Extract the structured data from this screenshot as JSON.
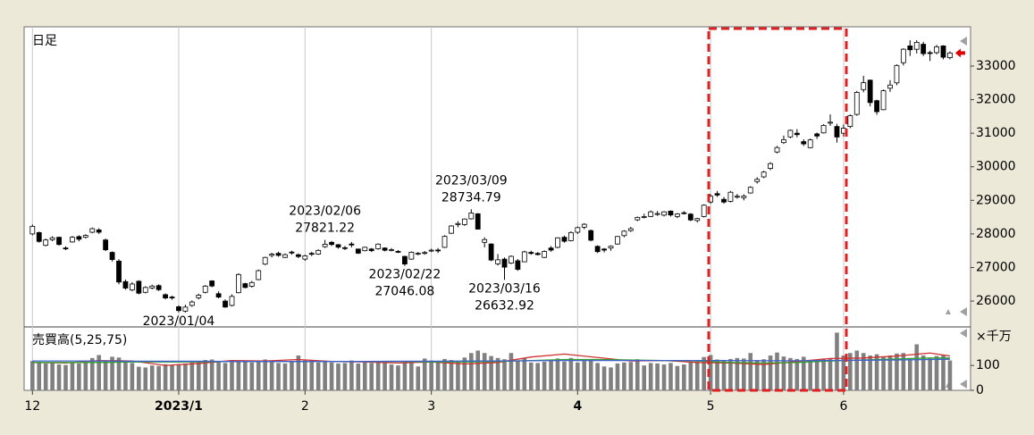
{
  "chart_data": [
    {
      "type": "candlestick",
      "title": "日足",
      "xlim": [
        -1.25,
        141.1
      ],
      "ylim": [
        25230,
        34170
      ],
      "yticks": [
        26000,
        27000,
        28000,
        29000,
        30000,
        31000,
        32000,
        33000
      ],
      "open": [
        28000,
        28040,
        27660,
        27830,
        27900,
        27580,
        27760,
        27920,
        27900,
        28050,
        28120,
        27820,
        27450,
        27190,
        26580,
        26330,
        26590,
        26260,
        26390,
        26460,
        26190,
        26120,
        25830,
        25700,
        25870,
        26100,
        26260,
        26600,
        26220,
        26000,
        25870,
        26250,
        26520,
        26440,
        26640,
        27100,
        27360,
        27420,
        27300,
        27460,
        27380,
        27250,
        27420,
        27400,
        27620,
        27750,
        27680,
        27590,
        27700,
        27550,
        27500,
        27550,
        27560,
        27580,
        27530,
        27480,
        27330,
        27250,
        27400,
        27420,
        27500,
        27520,
        27600,
        28020,
        28280,
        28280,
        28450,
        28600,
        27750,
        27700,
        27110,
        27250,
        27130,
        27200,
        27170,
        27450,
        27420,
        27300,
        27580,
        27600,
        27900,
        27800,
        28050,
        28200,
        28100,
        27630,
        27550,
        27580,
        27700,
        27950,
        28100,
        28420,
        28500,
        28520,
        28600,
        28560,
        28680,
        28520,
        28630,
        28590,
        28400,
        28520,
        28950,
        29200,
        29030,
        28970,
        29100,
        29080,
        29220,
        29560,
        29700,
        29950,
        30440,
        30720,
        30890,
        31000,
        30750,
        30570,
        30980,
        31010,
        31300,
        31200,
        31000,
        31200,
        31560,
        32300,
        32580,
        31970,
        31700,
        32340,
        32500,
        33100,
        33600,
        33500,
        33650,
        33400,
        33400,
        33600,
        33250
      ],
      "high": [
        28280,
        28070,
        27860,
        27930,
        27920,
        27630,
        27940,
        27960,
        27990,
        28190,
        28170,
        27860,
        27480,
        27250,
        26640,
        26560,
        26620,
        26440,
        26490,
        26500,
        26230,
        26160,
        25870,
        25890,
        26020,
        26220,
        26480,
        26620,
        26290,
        26050,
        26200,
        26830,
        26540,
        26600,
        26940,
        27320,
        27440,
        27470,
        27420,
        27500,
        27420,
        27380,
        27470,
        27540,
        27821.22,
        27790,
        27700,
        27640,
        27760,
        27560,
        27620,
        27580,
        27720,
        27600,
        27580,
        27520,
        27350,
        27480,
        27460,
        27490,
        27560,
        27580,
        27960,
        28260,
        28380,
        28460,
        28734.79,
        28620,
        27900,
        27720,
        27400,
        27300,
        27360,
        27250,
        27500,
        27500,
        27460,
        27510,
        27640,
        27900,
        27950,
        28080,
        28220,
        28320,
        28130,
        27660,
        27580,
        27660,
        27940,
        28110,
        28210,
        28520,
        28600,
        28700,
        28680,
        28680,
        28700,
        28620,
        28680,
        28620,
        28480,
        28880,
        29180,
        29280,
        29100,
        29280,
        29190,
        29180,
        29420,
        29690,
        29880,
        30140,
        30620,
        30930,
        31110,
        31120,
        30820,
        30840,
        31020,
        31270,
        31560,
        31280,
        31260,
        31560,
        32260,
        32710,
        32600,
        32000,
        32300,
        32580,
        33050,
        33530,
        33770,
        33770,
        33720,
        33460,
        33630,
        33620,
        33440
      ],
      "low": [
        27960,
        27740,
        27630,
        27780,
        27650,
        27520,
        27740,
        27780,
        27860,
        28020,
        28000,
        27490,
        27180,
        26500,
        26340,
        26290,
        26200,
        26230,
        26350,
        26300,
        26050,
        26040,
        25661.89,
        25660,
        25830,
        26050,
        26230,
        26410,
        26080,
        25800,
        25840,
        26230,
        26380,
        26400,
        26620,
        27070,
        27300,
        27320,
        27280,
        27380,
        27280,
        27200,
        27340,
        27380,
        27580,
        27640,
        27560,
        27520,
        27600,
        27400,
        27480,
        27460,
        27530,
        27480,
        27480,
        27430,
        27046.08,
        27230,
        27360,
        27380,
        27460,
        27430,
        27580,
        28000,
        28200,
        28240,
        28430,
        28130,
        27600,
        27190,
        27060,
        26632.92,
        27100,
        26900,
        27160,
        27380,
        27360,
        27280,
        27470,
        27570,
        27740,
        27780,
        28000,
        28140,
        27780,
        27430,
        27450,
        27500,
        27680,
        27900,
        28060,
        28380,
        28460,
        28500,
        28540,
        28520,
        28520,
        28470,
        28580,
        28380,
        28340,
        28490,
        28900,
        29100,
        28900,
        28940,
        29050,
        29000,
        29200,
        29500,
        29660,
        29900,
        30400,
        30680,
        30850,
        30880,
        30620,
        30550,
        30830,
        30990,
        31220,
        30720,
        30900,
        31150,
        31520,
        32220,
        31800,
        31550,
        31690,
        32230,
        32430,
        33020,
        33300,
        33380,
        33300,
        33150,
        33350,
        33200,
        33200
      ],
      "close": [
        28226,
        27777,
        27820,
        27885,
        27686,
        27574,
        27901,
        27842,
        27954,
        28156,
        28051,
        27527,
        27237,
        26568,
        26387,
        26507,
        26235,
        26405,
        26447,
        26340,
        26093,
        26094,
        25716,
        25820,
        25973,
        26175,
        26446,
        26449,
        26119,
        25822,
        26138,
        26791,
        26405,
        26553,
        26906,
        27299,
        27395,
        27362,
        27382,
        27433,
        27327,
        27346,
        27402,
        27509,
        27693,
        27685,
        27606,
        27584,
        27670,
        27427,
        27602,
        27501,
        27696,
        27513,
        27531,
        27473,
        27104,
        27453,
        27423,
        27445,
        27516,
        27498,
        27927,
        28237,
        28309,
        28444,
        28623,
        28143,
        27832,
        27222,
        27229,
        27010,
        27333,
        26945,
        27466,
        27419,
        27385,
        27476,
        27518,
        27883,
        27782,
        28041,
        28188,
        28287,
        27813,
        27472,
        27518,
        27633,
        27923,
        28082,
        28156,
        28493,
        28514,
        28658,
        28606,
        28657,
        28564,
        28593,
        28620,
        28416,
        28457,
        28856,
        29123,
        29157,
        28949,
        29242,
        29122,
        29126,
        29388,
        29626,
        29842,
        30093,
        30573,
        30808,
        31086,
        30957,
        30682,
        30801,
        30916,
        31233,
        31328,
        30887,
        31148,
        31524,
        32217,
        32506,
        31913,
        31641,
        32265,
        32434,
        33018,
        33502,
        33485,
        33706,
        33370,
        33388,
        33575,
        33264,
        33390
      ],
      "up_color": "#ffffff",
      "down_color": "#000000",
      "marker_color": "#e00000",
      "annotations": [
        {
          "date": "2023/01/04",
          "x": 22,
          "position": "below"
        },
        {
          "date": "2023/02/06",
          "value": 27821.22,
          "x": 44,
          "position": "above"
        },
        {
          "date": "2023/02/22",
          "value": 27046.08,
          "x": 56,
          "position": "below"
        },
        {
          "date": "2023/03/09",
          "value": 28734.79,
          "x": 66,
          "position": "above"
        },
        {
          "date": "2023/03/16",
          "value": 26632.92,
          "x": 71,
          "position": "below"
        }
      ]
    },
    {
      "type": "bar",
      "title": "売買高(5,25,75)",
      "unit": "×千万",
      "xlim": [
        -1.25,
        141.1
      ],
      "ylim": [
        0,
        255
      ],
      "yticks": [
        0,
        100
      ],
      "xticks": [
        {
          "value": 0,
          "label": "12"
        },
        {
          "value": 22,
          "label": "2023/1",
          "bold": true
        },
        {
          "value": 41,
          "label": "2"
        },
        {
          "value": 60,
          "label": "3"
        },
        {
          "value": 82,
          "label": "4",
          "bold": true
        },
        {
          "value": 102,
          "label": "5"
        },
        {
          "value": 122,
          "label": "6"
        }
      ],
      "color": "#808080",
      "values": [
        118,
        112,
        108,
        110,
        104,
        102,
        110,
        108,
        112,
        130,
        142,
        120,
        135,
        132,
        118,
        110,
        95,
        92,
        100,
        98,
        105,
        102,
        104,
        108,
        112,
        116,
        122,
        124,
        118,
        110,
        114,
        120,
        118,
        112,
        120,
        124,
        118,
        110,
        108,
        116,
        140,
        120,
        114,
        112,
        118,
        112,
        108,
        110,
        120,
        108,
        112,
        110,
        118,
        112,
        104,
        100,
        112,
        110,
        96,
        128,
        120,
        114,
        126,
        122,
        116,
        132,
        150,
        160,
        150,
        138,
        130,
        125,
        150,
        118,
        130,
        112,
        110,
        115,
        120,
        128,
        116,
        130,
        112,
        118,
        120,
        110,
        96,
        92,
        108,
        112,
        114,
        125,
        100,
        110,
        108,
        104,
        110,
        98,
        104,
        112,
        116,
        134,
        142,
        124,
        120,
        126,
        130,
        128,
        150,
        122,
        125,
        140,
        152,
        136,
        130,
        126,
        135,
        120,
        122,
        128,
        130,
        232,
        140,
        150,
        160,
        150,
        140,
        145,
        135,
        140,
        148,
        150,
        130,
        185,
        140,
        130,
        138,
        140,
        120
      ],
      "lines": [
        {
          "color": "#d03030",
          "x": [
            0,
            5,
            10,
            15,
            20,
            25,
            30,
            35,
            40,
            45,
            50,
            55,
            60,
            65,
            70,
            75,
            80,
            85,
            90,
            95,
            100,
            105,
            110,
            115,
            120,
            125,
            130,
            135,
            138
          ],
          "values": [
            112,
            110,
            120,
            118,
            100,
            108,
            120,
            118,
            124,
            116,
            114,
            110,
            114,
            106,
            112,
            134,
            146,
            132,
            118,
            120,
            112,
            110,
            104,
            116,
            128,
            130,
            138,
            150,
            138
          ]
        },
        {
          "color": "#30a030",
          "x": [
            0,
            5,
            10,
            15,
            20,
            25,
            30,
            35,
            40,
            45,
            50,
            55,
            60,
            65,
            70,
            75,
            80,
            85,
            90,
            95,
            100,
            105,
            110,
            115,
            120,
            125,
            130,
            135,
            138
          ],
          "values": [
            112,
            112,
            112,
            114,
            114,
            114,
            116,
            116,
            116,
            116,
            116,
            116,
            114,
            114,
            116,
            120,
            124,
            124,
            122,
            120,
            118,
            112,
            110,
            112,
            118,
            122,
            126,
            130,
            130
          ]
        },
        {
          "color": "#4060d0",
          "x": [
            0,
            5,
            10,
            15,
            20,
            25,
            30,
            35,
            40,
            45,
            50,
            55,
            60,
            65,
            70,
            75,
            80,
            85,
            90,
            95,
            100,
            105,
            110,
            115,
            120,
            125,
            130,
            135,
            138
          ],
          "values": [
            118,
            118,
            118,
            117,
            117,
            117,
            116,
            116,
            116,
            116,
            116,
            117,
            117,
            118,
            118,
            119,
            120,
            120,
            120,
            120,
            120,
            120,
            119,
            119,
            120,
            121,
            122,
            124,
            125
          ]
        }
      ]
    }
  ]
}
